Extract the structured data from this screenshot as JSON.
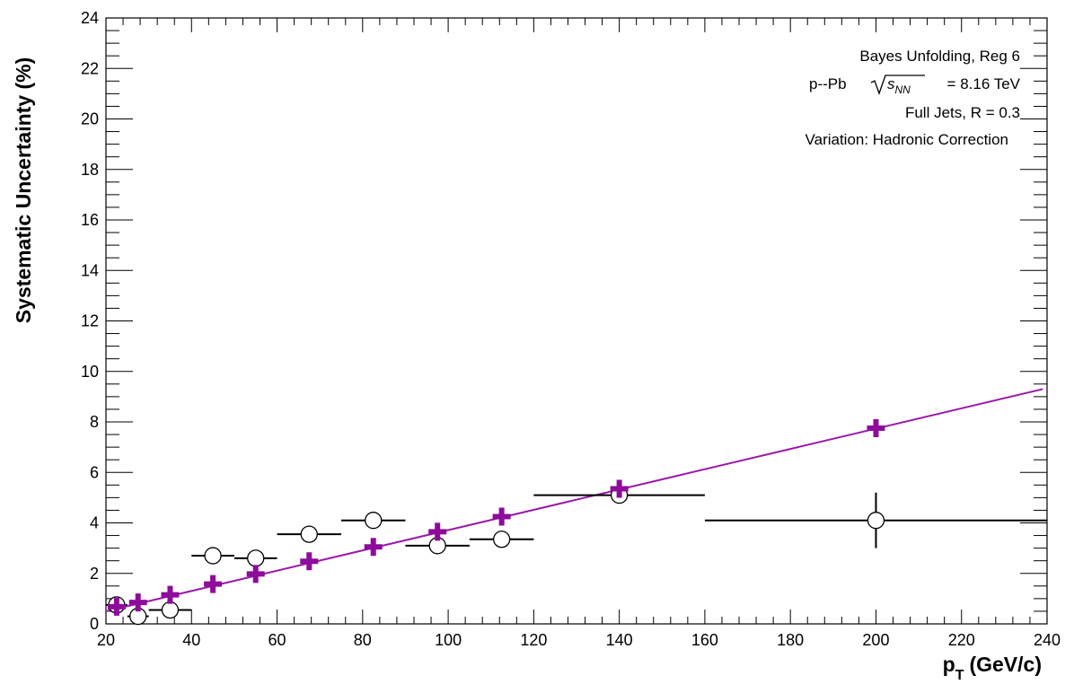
{
  "chart_data": {
    "type": "scatter",
    "xlabel": "p",
    "xlabel_sub": "T",
    "xlabel_unit": "(GeV/c)",
    "ylabel": "Systematic Uncertainty (%)",
    "xlim": [
      20,
      240
    ],
    "ylim": [
      0,
      24
    ],
    "x_ticks": [
      "20",
      "40",
      "60",
      "80",
      "100",
      "120",
      "140",
      "160",
      "180",
      "200",
      "220",
      "240"
    ],
    "y_ticks": [
      "0",
      "2",
      "4",
      "6",
      "8",
      "10",
      "12",
      "14",
      "16",
      "18",
      "20",
      "22",
      "24"
    ],
    "grid": false,
    "annotations": {
      "line1": "Bayes Unfolding, Reg 6",
      "line2_prefix": "p--Pb",
      "line2_s": "s",
      "line2_sub": "NN",
      "line2_suffix": "= 8.16 TeV",
      "line3": "Full Jets, R = 0.3",
      "line4": "Variation: Hadronic Correction"
    },
    "colors": {
      "fit": "#9a1aa8",
      "markers": "#8e0c9a",
      "open": "#000000"
    },
    "series": [
      {
        "marker": "open-circle",
        "points": [
          {
            "x": 22.5,
            "y": 0.75,
            "xlo": 20,
            "xhi": 25,
            "ylo": 0.75,
            "yhi": 0.75
          },
          {
            "x": 27.5,
            "y": 0.3,
            "xlo": 25,
            "xhi": 30,
            "ylo": 0.3,
            "yhi": 0.3
          },
          {
            "x": 35,
            "y": 0.55,
            "xlo": 30,
            "xhi": 40,
            "ylo": 0.55,
            "yhi": 0.55
          },
          {
            "x": 45,
            "y": 2.7,
            "xlo": 40,
            "xhi": 50,
            "ylo": 2.7,
            "yhi": 2.7
          },
          {
            "x": 55,
            "y": 2.6,
            "xlo": 50,
            "xhi": 60,
            "ylo": 2.3,
            "yhi": 2.9
          },
          {
            "x": 67.5,
            "y": 3.55,
            "xlo": 60,
            "xhi": 75,
            "ylo": 3.55,
            "yhi": 3.55
          },
          {
            "x": 82.5,
            "y": 4.1,
            "xlo": 75,
            "xhi": 90,
            "ylo": 4.1,
            "yhi": 4.1
          },
          {
            "x": 97.5,
            "y": 3.1,
            "xlo": 90,
            "xhi": 105,
            "ylo": 3.1,
            "yhi": 3.1
          },
          {
            "x": 112.5,
            "y": 3.35,
            "xlo": 105,
            "xhi": 120,
            "ylo": 3.35,
            "yhi": 3.35
          },
          {
            "x": 140,
            "y": 5.1,
            "xlo": 120,
            "xhi": 160,
            "ylo": 5.1,
            "yhi": 5.1
          },
          {
            "x": 200,
            "y": 4.1,
            "xlo": 160,
            "xhi": 240,
            "ylo": 3.0,
            "yhi": 5.2
          }
        ]
      },
      {
        "marker": "filled-cross",
        "points": [
          {
            "x": 22.5,
            "y": 0.68
          },
          {
            "x": 27.5,
            "y": 0.85
          },
          {
            "x": 35,
            "y": 1.15
          },
          {
            "x": 45,
            "y": 1.58
          },
          {
            "x": 55,
            "y": 1.98
          },
          {
            "x": 67.5,
            "y": 2.48
          },
          {
            "x": 82.5,
            "y": 3.05
          },
          {
            "x": 97.5,
            "y": 3.65
          },
          {
            "x": 112.5,
            "y": 4.25
          },
          {
            "x": 140,
            "y": 5.35
          },
          {
            "x": 200,
            "y": 7.75
          }
        ]
      }
    ],
    "fit_line": {
      "type": "linear",
      "x0": 20,
      "y0": 0.5,
      "x1": 239,
      "y1": 9.3
    }
  }
}
